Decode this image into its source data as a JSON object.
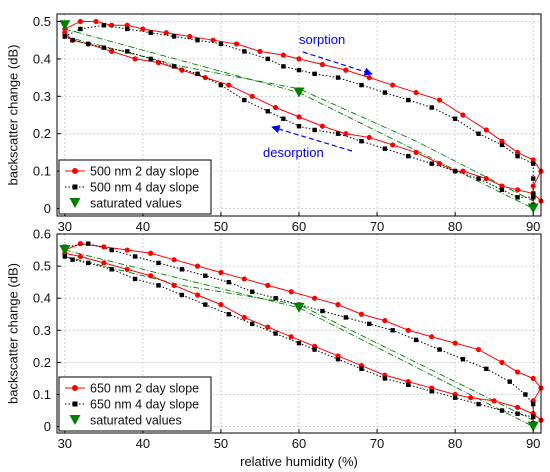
{
  "figure": {
    "xlabel": "relative humidity (%)"
  },
  "chart_data": [
    {
      "type": "line",
      "ylabel": "backscatter change (dB)",
      "xlim": [
        29,
        91
      ],
      "ylim": [
        -0.02,
        0.52
      ],
      "xticks": [
        30,
        40,
        50,
        60,
        70,
        80,
        90
      ],
      "yticks": [
        0,
        0.1,
        0.2,
        0.3,
        0.4,
        0.5
      ],
      "ytick_labels": [
        "0",
        "0.1",
        "0.2",
        "0.3",
        "0.4",
        "0.5"
      ],
      "grid": true,
      "legend_position": "bottom-left",
      "colors": {
        "series1": "#ff0000",
        "series2": "#000000",
        "saturated": "#008000",
        "annotation": "#0000ff"
      },
      "series": [
        {
          "name": "500 nm 2 day slope",
          "style": "solid-circle",
          "segments": [
            [
              [
                30,
                0.48
              ],
              [
                32,
                0.5
              ],
              [
                34,
                0.5
              ],
              [
                36,
                0.49
              ],
              [
                38,
                0.49
              ],
              [
                40,
                0.48
              ],
              [
                43,
                0.47
              ],
              [
                46,
                0.46
              ],
              [
                49,
                0.45
              ],
              [
                52,
                0.44
              ],
              [
                55,
                0.42
              ],
              [
                58,
                0.41
              ],
              [
                60,
                0.4
              ],
              [
                63,
                0.385
              ],
              [
                66,
                0.37
              ],
              [
                69,
                0.35
              ],
              [
                72,
                0.33
              ],
              [
                75,
                0.31
              ],
              [
                78,
                0.29
              ],
              [
                81,
                0.25
              ],
              [
                84,
                0.21
              ],
              [
                86,
                0.18
              ],
              [
                88,
                0.15
              ],
              [
                90,
                0.13
              ],
              [
                91,
                0.1
              ],
              [
                90,
                0.06
              ],
              [
                90,
                0.03
              ],
              [
                90,
                0.01
              ]
            ],
            [
              [
                91,
                0.02
              ],
              [
                90,
                0.04
              ],
              [
                88,
                0.05
              ],
              [
                86,
                0.06
              ],
              [
                84,
                0.08
              ],
              [
                81,
                0.1
              ],
              [
                80,
                0.1
              ],
              [
                78,
                0.12
              ],
              [
                75,
                0.15
              ],
              [
                72,
                0.17
              ],
              [
                69,
                0.19
              ],
              [
                66,
                0.2
              ],
              [
                63,
                0.22
              ],
              [
                60,
                0.245
              ],
              [
                57,
                0.27
              ],
              [
                54,
                0.3
              ],
              [
                51,
                0.33
              ],
              [
                48,
                0.35
              ],
              [
                45,
                0.37
              ],
              [
                42,
                0.39
              ],
              [
                39,
                0.4
              ],
              [
                36,
                0.42
              ],
              [
                33,
                0.44
              ],
              [
                31,
                0.45
              ],
              [
                30,
                0.47
              ]
            ]
          ]
        },
        {
          "name": "500 nm 4 day slope",
          "style": "dotted-square",
          "segments": [
            [
              [
                30,
                0.46
              ],
              [
                32,
                0.48
              ],
              [
                35,
                0.49
              ],
              [
                38,
                0.48
              ],
              [
                41,
                0.47
              ],
              [
                44,
                0.46
              ],
              [
                47,
                0.45
              ],
              [
                50,
                0.44
              ],
              [
                53,
                0.42
              ],
              [
                56,
                0.4
              ],
              [
                58,
                0.38
              ],
              [
                60,
                0.37
              ],
              [
                62,
                0.36
              ],
              [
                65,
                0.35
              ],
              [
                68,
                0.33
              ],
              [
                71,
                0.31
              ],
              [
                74,
                0.29
              ],
              [
                77,
                0.27
              ],
              [
                80,
                0.24
              ],
              [
                83,
                0.2
              ],
              [
                86,
                0.17
              ],
              [
                88,
                0.14
              ],
              [
                90,
                0.12
              ],
              [
                90,
                0.08
              ],
              [
                90,
                0.04
              ],
              [
                90,
                0.01
              ]
            ],
            [
              [
                90,
                0.03
              ],
              [
                88,
                0.03
              ],
              [
                86,
                0.05
              ],
              [
                83,
                0.08
              ],
              [
                80,
                0.1
              ],
              [
                77,
                0.12
              ],
              [
                74,
                0.14
              ],
              [
                71,
                0.16
              ],
              [
                68,
                0.18
              ],
              [
                65,
                0.2
              ],
              [
                62,
                0.21
              ],
              [
                60,
                0.22
              ],
              [
                58,
                0.24
              ],
              [
                56,
                0.26
              ],
              [
                53,
                0.29
              ],
              [
                50,
                0.33
              ],
              [
                47,
                0.36
              ],
              [
                44,
                0.38
              ],
              [
                41,
                0.4
              ],
              [
                38,
                0.42
              ],
              [
                35,
                0.43
              ],
              [
                33,
                0.44
              ],
              [
                31,
                0.45
              ],
              [
                30,
                0.46
              ]
            ]
          ]
        }
      ],
      "guide_lines": [
        [
          [
            30,
            0.48
          ],
          [
            60,
            0.31
          ],
          [
            90,
            0.0
          ]
        ],
        [
          [
            30,
            0.46
          ],
          [
            45,
            0.38
          ],
          [
            60,
            0.32
          ],
          [
            75,
            0.18
          ],
          [
            90,
            0.02
          ]
        ]
      ],
      "saturated_values": {
        "name": "saturated values",
        "x": [
          30,
          60,
          90
        ],
        "y": [
          0.49,
          0.31,
          0.0
        ]
      },
      "annotations": [
        {
          "text": "sorption",
          "x": 71,
          "y": 0.44
        },
        {
          "text": "desorption",
          "x": 71,
          "y": 0.07
        }
      ]
    },
    {
      "type": "line",
      "ylabel": "backscatter change (dB)",
      "xlim": [
        29,
        91
      ],
      "ylim": [
        -0.02,
        0.6
      ],
      "xticks": [
        30,
        40,
        50,
        60,
        70,
        80,
        90
      ],
      "yticks": [
        0,
        0.1,
        0.2,
        0.3,
        0.4,
        0.5,
        0.6
      ],
      "ytick_labels": [
        "0",
        "0.1",
        "0.2",
        "0.3",
        "0.4",
        "0.5",
        "0.6"
      ],
      "grid": true,
      "legend_position": "bottom-left",
      "colors": {
        "series1": "#ff0000",
        "series2": "#000000",
        "saturated": "#008000"
      },
      "series": [
        {
          "name": "650 nm 2 day slope",
          "style": "solid-circle",
          "segments": [
            [
              [
                30,
                0.55
              ],
              [
                32,
                0.57
              ],
              [
                35,
                0.56
              ],
              [
                38,
                0.55
              ],
              [
                41,
                0.54
              ],
              [
                44,
                0.52
              ],
              [
                47,
                0.5
              ],
              [
                50,
                0.48
              ],
              [
                53,
                0.46
              ],
              [
                56,
                0.44
              ],
              [
                59,
                0.42
              ],
              [
                62,
                0.4
              ],
              [
                65,
                0.38
              ],
              [
                68,
                0.35
              ],
              [
                71,
                0.33
              ],
              [
                74,
                0.3
              ],
              [
                77,
                0.28
              ],
              [
                80,
                0.26
              ],
              [
                83,
                0.24
              ],
              [
                86,
                0.2
              ],
              [
                88,
                0.17
              ],
              [
                90,
                0.15
              ],
              [
                91,
                0.12
              ],
              [
                90,
                0.08
              ],
              [
                90,
                0.04
              ],
              [
                90,
                0.01
              ]
            ],
            [
              [
                91,
                0.02
              ],
              [
                90,
                0.04
              ],
              [
                88,
                0.06
              ],
              [
                85,
                0.08
              ],
              [
                82,
                0.09
              ],
              [
                80,
                0.1
              ],
              [
                77,
                0.12
              ],
              [
                74,
                0.14
              ],
              [
                71,
                0.16
              ],
              [
                68,
                0.19
              ],
              [
                65,
                0.22
              ],
              [
                62,
                0.25
              ],
              [
                59,
                0.28
              ],
              [
                56,
                0.31
              ],
              [
                53,
                0.34
              ],
              [
                50,
                0.38
              ],
              [
                47,
                0.41
              ],
              [
                44,
                0.44
              ],
              [
                41,
                0.47
              ],
              [
                38,
                0.49
              ],
              [
                35,
                0.51
              ],
              [
                32,
                0.53
              ],
              [
                30,
                0.54
              ]
            ]
          ]
        },
        {
          "name": "650 nm 4 day slope",
          "style": "dotted-square",
          "segments": [
            [
              [
                30,
                0.56
              ],
              [
                33,
                0.57
              ],
              [
                36,
                0.55
              ],
              [
                39,
                0.53
              ],
              [
                42,
                0.51
              ],
              [
                45,
                0.49
              ],
              [
                48,
                0.47
              ],
              [
                51,
                0.45
              ],
              [
                54,
                0.42
              ],
              [
                57,
                0.4
              ],
              [
                60,
                0.38
              ],
              [
                63,
                0.36
              ],
              [
                66,
                0.34
              ],
              [
                69,
                0.32
              ],
              [
                72,
                0.3
              ],
              [
                75,
                0.27
              ],
              [
                78,
                0.24
              ],
              [
                81,
                0.21
              ],
              [
                84,
                0.18
              ],
              [
                87,
                0.14
              ],
              [
                89,
                0.1
              ],
              [
                90,
                0.07
              ],
              [
                90,
                0.03
              ],
              [
                90,
                0.01
              ]
            ],
            [
              [
                90,
                0.03
              ],
              [
                88,
                0.04
              ],
              [
                86,
                0.05
              ],
              [
                83,
                0.07
              ],
              [
                80,
                0.09
              ],
              [
                77,
                0.11
              ],
              [
                74,
                0.13
              ],
              [
                71,
                0.15
              ],
              [
                68,
                0.18
              ],
              [
                65,
                0.21
              ],
              [
                62,
                0.24
              ],
              [
                60,
                0.26
              ],
              [
                57,
                0.29
              ],
              [
                54,
                0.32
              ],
              [
                51,
                0.35
              ],
              [
                48,
                0.38
              ],
              [
                45,
                0.41
              ],
              [
                42,
                0.44
              ],
              [
                39,
                0.46
              ],
              [
                36,
                0.49
              ],
              [
                33,
                0.51
              ],
              [
                31,
                0.52
              ],
              [
                30,
                0.53
              ]
            ]
          ]
        }
      ],
      "guide_lines": [
        [
          [
            30,
            0.55
          ],
          [
            60,
            0.37
          ],
          [
            90,
            0.0
          ]
        ],
        [
          [
            30,
            0.53
          ],
          [
            45,
            0.44
          ],
          [
            60,
            0.38
          ],
          [
            75,
            0.2
          ],
          [
            90,
            0.02
          ]
        ]
      ],
      "saturated_values": {
        "name": "saturated values",
        "x": [
          30,
          60,
          90
        ],
        "y": [
          0.55,
          0.37,
          0.0
        ]
      },
      "annotations": []
    }
  ]
}
